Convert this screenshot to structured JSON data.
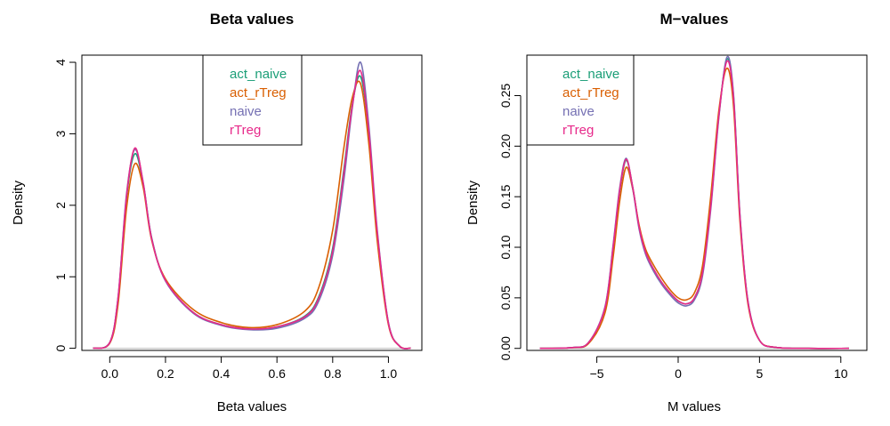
{
  "chart_data": [
    {
      "type": "line",
      "title": "Beta values",
      "xlabel": "Beta values",
      "ylabel": "Density",
      "xlim": [
        -0.1,
        1.12
      ],
      "ylim": [
        -0.03,
        4.1
      ],
      "xticks": [
        "0.0",
        "0.2",
        "0.4",
        "0.6",
        "0.8",
        "1.0"
      ],
      "xtick_values": [
        0,
        0.2,
        0.4,
        0.6,
        0.8,
        1.0
      ],
      "yticks": [
        "0",
        "1",
        "2",
        "3",
        "4"
      ],
      "ytick_values": [
        0,
        1,
        2,
        3,
        4
      ],
      "legend_position": "top-center",
      "legend": [
        {
          "label": "act_naive",
          "color": "#1B9E77"
        },
        {
          "label": "act_rTreg",
          "color": "#D95F02"
        },
        {
          "label": "naive",
          "color": "#7570B3"
        },
        {
          "label": "rTreg",
          "color": "#E7298A"
        }
      ],
      "grid": false,
      "series": [
        {
          "color": "#1B9E77",
          "x": [
            -0.06,
            0,
            0.03,
            0.06,
            0.09,
            0.12,
            0.15,
            0.2,
            0.3,
            0.4,
            0.5,
            0.6,
            0.7,
            0.75,
            0.8,
            0.84,
            0.87,
            0.9,
            0.93,
            0.96,
            1.0,
            1.04,
            1.08
          ],
          "y": [
            0,
            0.08,
            0.7,
            2.1,
            2.72,
            2.3,
            1.55,
            0.95,
            0.5,
            0.33,
            0.27,
            0.3,
            0.45,
            0.72,
            1.4,
            2.5,
            3.4,
            3.8,
            3.0,
            1.6,
            0.35,
            0.03,
            0
          ]
        },
        {
          "color": "#D95F02",
          "x": [
            -0.06,
            0,
            0.03,
            0.06,
            0.09,
            0.12,
            0.15,
            0.2,
            0.3,
            0.4,
            0.5,
            0.6,
            0.7,
            0.75,
            0.8,
            0.84,
            0.87,
            0.9,
            0.93,
            0.96,
            1.0,
            1.04,
            1.08
          ],
          "y": [
            0,
            0.07,
            0.62,
            1.95,
            2.58,
            2.25,
            1.52,
            0.97,
            0.54,
            0.36,
            0.29,
            0.33,
            0.52,
            0.85,
            1.65,
            2.8,
            3.5,
            3.7,
            2.85,
            1.5,
            0.33,
            0.03,
            0
          ]
        },
        {
          "color": "#7570B3",
          "x": [
            -0.06,
            0,
            0.03,
            0.06,
            0.09,
            0.12,
            0.15,
            0.2,
            0.3,
            0.4,
            0.5,
            0.6,
            0.7,
            0.75,
            0.8,
            0.84,
            0.87,
            0.9,
            0.93,
            0.96,
            1.0,
            1.04,
            1.08
          ],
          "y": [
            0,
            0.08,
            0.72,
            2.15,
            2.78,
            2.32,
            1.55,
            0.94,
            0.49,
            0.32,
            0.26,
            0.28,
            0.42,
            0.66,
            1.3,
            2.35,
            3.35,
            4.0,
            3.1,
            1.65,
            0.36,
            0.03,
            0
          ]
        },
        {
          "color": "#E7298A",
          "x": [
            -0.06,
            0,
            0.03,
            0.06,
            0.09,
            0.12,
            0.15,
            0.2,
            0.3,
            0.4,
            0.5,
            0.6,
            0.7,
            0.75,
            0.8,
            0.84,
            0.87,
            0.9,
            0.93,
            0.96,
            1.0,
            1.04,
            1.08
          ],
          "y": [
            0,
            0.08,
            0.71,
            2.12,
            2.8,
            2.31,
            1.54,
            0.95,
            0.5,
            0.33,
            0.27,
            0.3,
            0.44,
            0.7,
            1.36,
            2.45,
            3.38,
            3.88,
            3.02,
            1.62,
            0.35,
            0.03,
            0
          ]
        }
      ]
    },
    {
      "type": "line",
      "title": "M−values",
      "xlabel": "M values",
      "ylabel": "Density",
      "xlim": [
        -9.3,
        11.6
      ],
      "ylim": [
        -0.002,
        0.29
      ],
      "xticks": [
        "−5",
        "0",
        "5",
        "10"
      ],
      "xtick_values": [
        -5,
        0,
        5,
        10
      ],
      "yticks": [
        "0.00",
        "0.05",
        "0.10",
        "0.15",
        "0.20",
        "0.25"
      ],
      "ytick_values": [
        0,
        0.05,
        0.1,
        0.15,
        0.2,
        0.25
      ],
      "legend_position": "top-left",
      "legend": [
        {
          "label": "act_naive",
          "color": "#1B9E77"
        },
        {
          "label": "act_rTreg",
          "color": "#D95F02"
        },
        {
          "label": "naive",
          "color": "#7570B3"
        },
        {
          "label": "rTreg",
          "color": "#E7298A"
        }
      ],
      "grid": false,
      "series": [
        {
          "color": "#1B9E77",
          "x": [
            -8.5,
            -6.5,
            -5.5,
            -4.5,
            -4,
            -3.6,
            -3.2,
            -2.8,
            -2.4,
            -2,
            -1.5,
            -1,
            -0.5,
            0,
            0.5,
            1,
            1.5,
            2,
            2.5,
            3,
            3.4,
            3.8,
            4.3,
            5,
            6,
            8,
            10.5
          ],
          "y": [
            0,
            0.0008,
            0.006,
            0.04,
            0.1,
            0.155,
            0.186,
            0.16,
            0.12,
            0.095,
            0.078,
            0.065,
            0.055,
            0.047,
            0.044,
            0.05,
            0.075,
            0.14,
            0.23,
            0.286,
            0.25,
            0.13,
            0.045,
            0.008,
            0.001,
            0,
            0
          ]
        },
        {
          "color": "#D95F02",
          "x": [
            -8.5,
            -6.5,
            -5.5,
            -4.5,
            -4,
            -3.6,
            -3.2,
            -2.8,
            -2.4,
            -2,
            -1.5,
            -1,
            -0.5,
            0,
            0.5,
            1,
            1.5,
            2,
            2.5,
            3,
            3.4,
            3.8,
            4.3,
            5,
            6,
            8,
            10.5
          ],
          "y": [
            0,
            0.0007,
            0.005,
            0.035,
            0.09,
            0.145,
            0.179,
            0.158,
            0.122,
            0.098,
            0.082,
            0.069,
            0.058,
            0.05,
            0.048,
            0.055,
            0.082,
            0.15,
            0.235,
            0.277,
            0.24,
            0.125,
            0.043,
            0.008,
            0.001,
            0,
            0
          ]
        },
        {
          "color": "#7570B3",
          "x": [
            -8.5,
            -6.5,
            -5.5,
            -4.5,
            -4,
            -3.6,
            -3.2,
            -2.8,
            -2.4,
            -2,
            -1.5,
            -1,
            -0.5,
            0,
            0.5,
            1,
            1.5,
            2,
            2.5,
            3,
            3.4,
            3.8,
            4.3,
            5,
            6,
            8,
            10.5
          ],
          "y": [
            0,
            0.0008,
            0.006,
            0.041,
            0.102,
            0.158,
            0.188,
            0.159,
            0.118,
            0.093,
            0.076,
            0.063,
            0.053,
            0.045,
            0.042,
            0.048,
            0.072,
            0.137,
            0.228,
            0.288,
            0.252,
            0.132,
            0.046,
            0.008,
            0.001,
            0,
            0
          ]
        },
        {
          "color": "#E7298A",
          "x": [
            -8.5,
            -6.5,
            -5.5,
            -4.5,
            -4,
            -3.6,
            -3.2,
            -2.8,
            -2.4,
            -2,
            -1.5,
            -1,
            -0.5,
            0,
            0.5,
            1,
            1.5,
            2,
            2.5,
            3,
            3.4,
            3.8,
            4.3,
            5,
            6,
            8,
            10.5
          ],
          "y": [
            0,
            0.0008,
            0.006,
            0.04,
            0.1,
            0.156,
            0.187,
            0.16,
            0.12,
            0.095,
            0.078,
            0.065,
            0.055,
            0.047,
            0.044,
            0.05,
            0.075,
            0.14,
            0.23,
            0.284,
            0.248,
            0.13,
            0.045,
            0.008,
            0.001,
            0,
            0
          ]
        }
      ]
    }
  ]
}
